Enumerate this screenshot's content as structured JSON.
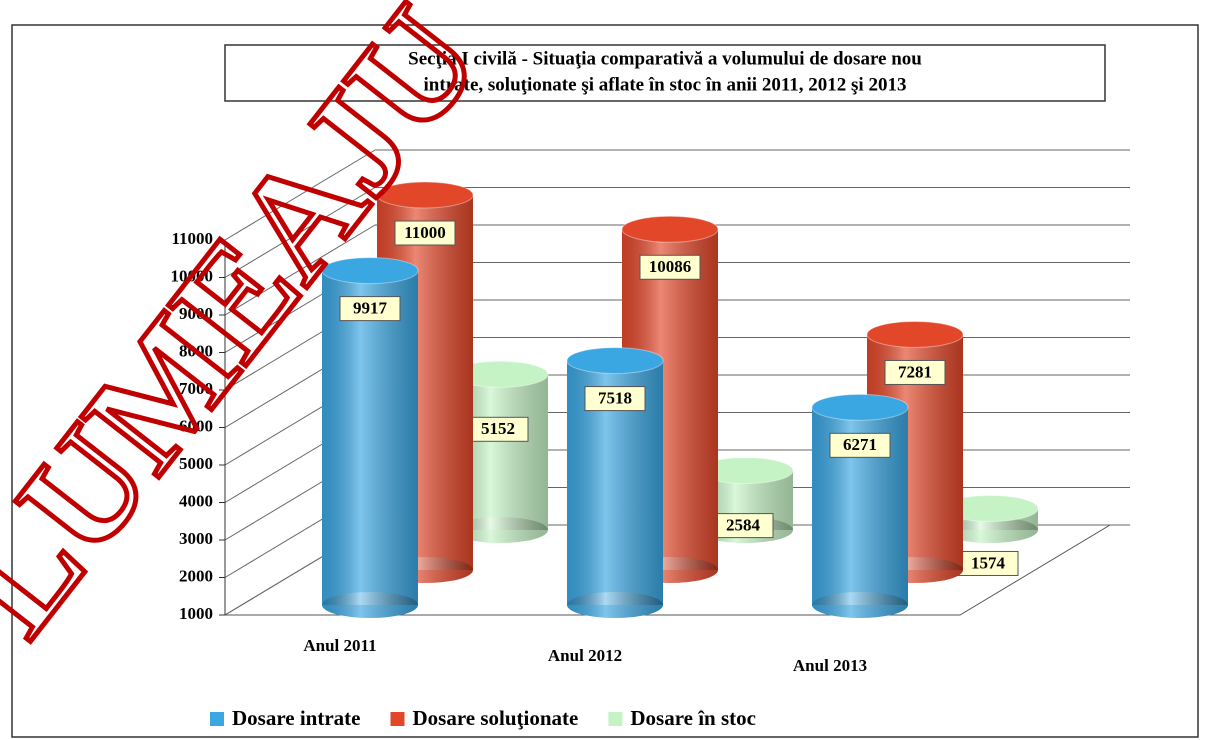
{
  "chart_data": {
    "type": "bar3d",
    "title": [
      "Secţia I civilă - Situaţia comparativă a volumului  de dosare nou",
      "intrate, soluţionate şi aflate în  stoc în anii 2011, 2012 şi 2013"
    ],
    "categories": [
      "Anul 2011",
      "Anul 2012",
      "Anul 2013"
    ],
    "series": [
      {
        "name": "Dosare intrate",
        "color": "#3aa6e2",
        "values": [
          9917,
          7518,
          6271
        ]
      },
      {
        "name": "Dosare soluţionate",
        "color": "#e2472a",
        "values": [
          11000,
          10086,
          7281
        ]
      },
      {
        "name": "Dosare în stoc",
        "color": "#c6f3c6",
        "values": [
          5152,
          2584,
          1574
        ]
      }
    ],
    "ylim": [
      1000,
      11000
    ],
    "yticks": [
      1000,
      2000,
      3000,
      4000,
      5000,
      6000,
      7000,
      8000,
      9000,
      10000,
      11000
    ],
    "grid": true,
    "legend": "bottom",
    "watermark": "LUMEAJU"
  }
}
